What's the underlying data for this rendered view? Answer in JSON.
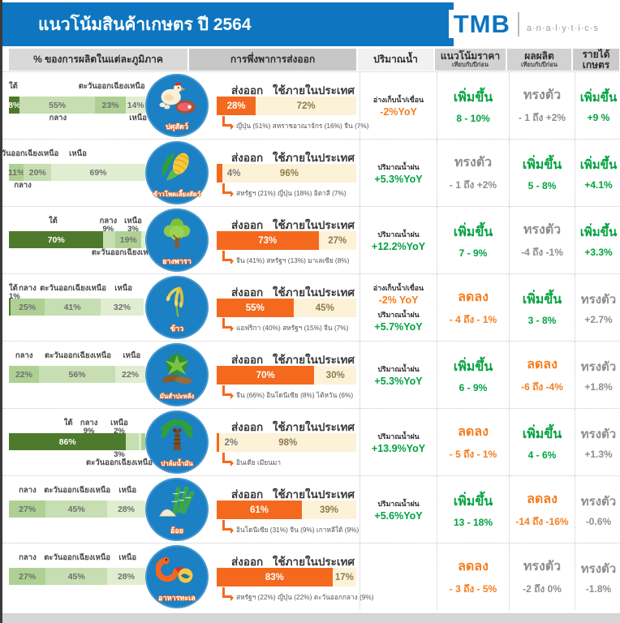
{
  "header": {
    "title": "แนวโน้มสินค้าเกษตร ปี 2564",
    "logo": {
      "brand": "TMB",
      "sub": "a·n·a·l·y·t·i·c·s"
    },
    "columns": [
      {
        "label": "% ของการผลิตในแต่ละภูมิภาค",
        "sub": "",
        "bg": "#d9d9d9"
      },
      {
        "label": "การพึ่งพาการส่งออก",
        "sub": "",
        "bg": "#c7c7c7"
      },
      {
        "label": "ปริมาณน้ำ",
        "sub": "",
        "bg": "#f1f1f1"
      },
      {
        "label": "แนวโน้มราคา",
        "sub": "เทียบกับปีก่อน",
        "bg": "#d2d2d2"
      },
      {
        "label": "ผลผลิต",
        "sub": "เทียบกับปีก่อน",
        "bg": "#d2d2d2"
      },
      {
        "label": "รายได้เกษตร",
        "sub": "",
        "bg": "#cbcbcb"
      }
    ]
  },
  "labels": {
    "export_title": "ส่งออก",
    "domestic_title": "ใช้ภายในประเทศ"
  },
  "colors": {
    "accent_blue": "#0e76c0",
    "circle_blue": "#1b80c4",
    "orange": "#f4691e",
    "cream": "#fcf2d8",
    "green_text": "#00a23f",
    "orange_text": "#f57e20",
    "gray_text": "#8e8e8e",
    "bar_greens": [
      "#4e7a2e",
      "#aed193",
      "#c6deb1",
      "#e0edd0"
    ]
  },
  "chart_data": {
    "type": "table",
    "title": "แนวโน้มสินค้าเกษตร ปี 2564",
    "columns": [
      "% ของการผลิตในแต่ละภูมิภาค",
      "การพึ่งพาการส่งออก",
      "ปริมาณน้ำ",
      "แนวโน้มราคา เทียบกับปีก่อน",
      "ผลผลิต เทียบกับปีก่อน",
      "รายได้เกษตร"
    ],
    "rows": [
      {
        "name": "ปศุสัตว์",
        "icon": "livestock",
        "region": [
          {
            "region": "ใต้",
            "pct": 8,
            "shade": "g1",
            "label_pos": "top",
            "pct_pos": "in"
          },
          {
            "region": "กลาง",
            "pct": 55,
            "shade": "g3",
            "label_pos": "bottom",
            "pct_pos": "in"
          },
          {
            "region": "ตะวันออกเฉียงเหนือ",
            "pct": 23,
            "shade": "g2",
            "label_pos": "top",
            "pct_pos": "in"
          },
          {
            "region": "เหนือ",
            "pct": 14,
            "shade": "g4",
            "label_pos": "bottom",
            "pct_pos": "in"
          }
        ],
        "export_pct": 28,
        "domestic_pct": 72,
        "destinations": "ญี่ปุ่น (51%) สหราชอาณาจักร (16%) จีน (7%)",
        "water": [
          {
            "label": "อ่างเก็บน้ำ/เขื่อน",
            "value": "-2%YoY",
            "tone": "down"
          }
        ],
        "price": {
          "status": "เพิ่มขึ้น",
          "range": "8 - 10%",
          "tone": "up"
        },
        "output": {
          "status": "ทรงตัว",
          "range": "- 1 ถึง +2%",
          "tone": "flat"
        },
        "income": {
          "status": "เพิ่มขึ้น",
          "range": "+9 %",
          "tone": "up"
        }
      },
      {
        "name": "ข้าวโพดเลี้ยงสัตว์",
        "icon": "corn",
        "region": [
          {
            "region": "ตะวันออกเฉียงเหนือ",
            "pct": 11,
            "shade": "g2",
            "label_pos": "top",
            "pct_pos": "in",
            "at": 12
          },
          {
            "region": "กลาง",
            "pct": 20,
            "shade": "g3",
            "label_pos": "bottom",
            "pct_pos": "in",
            "at": 10
          },
          {
            "region": "เหนือ",
            "pct": 69,
            "shade": "g4",
            "label_pos": "top",
            "pct_pos": "in",
            "at": 50
          }
        ],
        "export_pct": 4,
        "domestic_pct": 96,
        "destinations": "สหรัฐฯ (21%) ญี่ปุ่น (18%) อิตาลี (7%)",
        "water": [
          {
            "label": "ปริมาณน้ำฝน",
            "value": "+5.3%YoY",
            "tone": "up"
          }
        ],
        "price": {
          "status": "ทรงตัว",
          "range": "- 1 ถึง +2%",
          "tone": "flat"
        },
        "output": {
          "status": "เพิ่มขึ้น",
          "range": "5 - 8%",
          "tone": "up"
        },
        "income": {
          "status": "เพิ่มขึ้น",
          "range": "+4.1%",
          "tone": "up"
        }
      },
      {
        "name": "ยางพารา",
        "icon": "rubber",
        "region": [
          {
            "region": "ใต้",
            "pct": 70,
            "shade": "g1",
            "label_pos": "top",
            "pct_pos": "in",
            "at": 32
          },
          {
            "region": "กลาง",
            "pct": 9,
            "shade": "g3",
            "label_pos": "top",
            "pct_pos": "with-name",
            "at": 72
          },
          {
            "region": "ตะวันออกเฉียงเหนือ",
            "pct": 19,
            "shade": "g2",
            "label_pos": "bottom",
            "pct_pos": "in",
            "at": 84
          },
          {
            "region": "เหนือ",
            "pct": 3,
            "shade": "g4",
            "label_pos": "top",
            "pct_pos": "with-name",
            "at": 90
          }
        ],
        "export_pct": 73,
        "domestic_pct": 27,
        "destinations": "จีน (41%) สหรัฐฯ (13%) มาเลเซีย (8%)",
        "water": [
          {
            "label": "ปริมาณน้ำฝน",
            "value": "+12.2%YoY",
            "tone": "up"
          }
        ],
        "price": {
          "status": "เพิ่มขึ้น",
          "range": "7 - 9%",
          "tone": "up"
        },
        "output": {
          "status": "ทรงตัว",
          "range": "-4 ถึง -1%",
          "tone": "flat"
        },
        "income": {
          "status": "เพิ่มขึ้น",
          "range": "+3.3%",
          "tone": "up"
        }
      },
      {
        "name": "ข้าว",
        "icon": "rice",
        "region": [
          {
            "region": "ใต้",
            "pct": 1,
            "shade": "g1",
            "label_pos": "top",
            "pct_pos": "with-name",
            "at": 1
          },
          {
            "region": "กลาง",
            "pct": 25,
            "shade": "g2",
            "label_pos": "top",
            "pct_pos": "in"
          },
          {
            "region": "ตะวันออกเฉียงเหนือ",
            "pct": 41,
            "shade": "g3",
            "label_pos": "top",
            "pct_pos": "in"
          },
          {
            "region": "เหนือ",
            "pct": 32,
            "shade": "g4",
            "label_pos": "top",
            "pct_pos": "in"
          }
        ],
        "export_pct": 55,
        "domestic_pct": 45,
        "destinations": "แอฟริกา (40%) สหรัฐฯ (15%) จีน (7%)",
        "water": [
          {
            "label": "อ่างเก็บน้ำ/เขื่อน",
            "value": "-2% YoY",
            "tone": "down"
          },
          {
            "label": "ปริมาณน้ำฝน",
            "value": "+5.7%YoY",
            "tone": "up"
          }
        ],
        "price": {
          "status": "ลดลง",
          "range": "- 4 ถึง - 1%",
          "tone": "down"
        },
        "output": {
          "status": "เพิ่มขึ้น",
          "range": "3 - 8%",
          "tone": "up"
        },
        "income": {
          "status": "ทรงตัว",
          "range": "+2.7%",
          "tone": "flat"
        }
      },
      {
        "name": "มันสำปะหลัง",
        "icon": "cassava",
        "region": [
          {
            "region": "กลาง",
            "pct": 22,
            "shade": "g2",
            "label_pos": "top",
            "pct_pos": "in"
          },
          {
            "region": "ตะวันออกเฉียงเหนือ",
            "pct": 56,
            "shade": "g3",
            "label_pos": "top",
            "pct_pos": "in"
          },
          {
            "region": "เหนือ",
            "pct": 22,
            "shade": "g4",
            "label_pos": "top",
            "pct_pos": "in"
          }
        ],
        "export_pct": 70,
        "domestic_pct": 30,
        "destinations": "จีน (66%) อินโดนีเซีย (8%) ไต้หวัน (6%)",
        "water": [
          {
            "label": "ปริมาณน้ำฝน",
            "value": "+5.3%YoY",
            "tone": "up"
          }
        ],
        "price": {
          "status": "เพิ่มขึ้น",
          "range": "6 - 9%",
          "tone": "up"
        },
        "output": {
          "status": "ลดลง",
          "range": "-6 ถึง -4%",
          "tone": "down"
        },
        "income": {
          "status": "ทรงตัว",
          "range": "+1.8%",
          "tone": "flat"
        }
      },
      {
        "name": "ปาล์มน้ำมัน",
        "icon": "palm",
        "region": [
          {
            "region": "ใต้",
            "pct": 86,
            "shade": "g1",
            "label_pos": "top",
            "pct_pos": "in",
            "at": 43
          },
          {
            "region": "กลาง",
            "pct": 9,
            "shade": "g3",
            "label_pos": "top",
            "pct_pos": "with-name",
            "at": 58
          },
          {
            "region": "เหนือ",
            "pct": 2,
            "shade": "g4",
            "label_pos": "top",
            "pct_pos": "with-name",
            "at": 80
          },
          {
            "region": "ตะวันออกเฉียงเหนือ",
            "pct": 3,
            "shade": "g2",
            "label_pos": "bottom",
            "pct_pos": "with-name",
            "at": 80
          }
        ],
        "export_pct": 2,
        "domestic_pct": 98,
        "destinations": "อินเดีย เมียนมา",
        "water": [
          {
            "label": "ปริมาณน้ำฝน",
            "value": "+13.9%YoY",
            "tone": "up"
          }
        ],
        "price": {
          "status": "ลดลง",
          "range": "- 5 ถึง - 1%",
          "tone": "down"
        },
        "output": {
          "status": "เพิ่มขึ้น",
          "range": "4 - 6%",
          "tone": "up"
        },
        "income": {
          "status": "ทรงตัว",
          "range": "+1.3%",
          "tone": "flat"
        }
      },
      {
        "name": "อ้อย",
        "icon": "sugarcane",
        "region": [
          {
            "region": "กลาง",
            "pct": 27,
            "shade": "g2",
            "label_pos": "top",
            "pct_pos": "in"
          },
          {
            "region": "ตะวันออกเฉียงเหนือ",
            "pct": 45,
            "shade": "g3",
            "label_pos": "top",
            "pct_pos": "in"
          },
          {
            "region": "เหนือ",
            "pct": 28,
            "shade": "g4",
            "label_pos": "top",
            "pct_pos": "in"
          }
        ],
        "export_pct": 61,
        "domestic_pct": 39,
        "destinations": "อินโดนีเซีย (31%) จีน (9%) เกาหลีใต้ (9%)",
        "water": [
          {
            "label": "ปริมาณน้ำฝน",
            "value": "+5.6%YoY",
            "tone": "up"
          }
        ],
        "price": {
          "status": "เพิ่มขึ้น",
          "range": "13 - 18%",
          "tone": "up"
        },
        "output": {
          "status": "ลดลง",
          "range": "-14 ถึง -16%",
          "tone": "down"
        },
        "income": {
          "status": "ทรงตัว",
          "range": "-0.6%",
          "tone": "flat"
        }
      },
      {
        "name": "อาหารทะเล",
        "icon": "seafood",
        "region": [
          {
            "region": "กลาง",
            "pct": 27,
            "shade": "g2",
            "label_pos": "top",
            "pct_pos": "in"
          },
          {
            "region": "ตะวันออกเฉียงเหนือ",
            "pct": 45,
            "shade": "g3",
            "label_pos": "top",
            "pct_pos": "in"
          },
          {
            "region": "เหนือ",
            "pct": 28,
            "shade": "g4",
            "label_pos": "top",
            "pct_pos": "in"
          }
        ],
        "export_pct": 83,
        "domestic_pct": 17,
        "destinations": "สหรัฐฯ (22%) ญี่ปุ่น (22%) ตะวันออกกลาง (9%)",
        "water": [],
        "price": {
          "status": "ลดลง",
          "range": "- 3 ถึง - 5%",
          "tone": "down"
        },
        "output": {
          "status": "ทรงตัว",
          "range": "-2 ถึง 0%",
          "tone": "flat"
        },
        "income": {
          "status": "ทรงตัว",
          "range": "-1.8%",
          "tone": "flat"
        }
      }
    ]
  }
}
